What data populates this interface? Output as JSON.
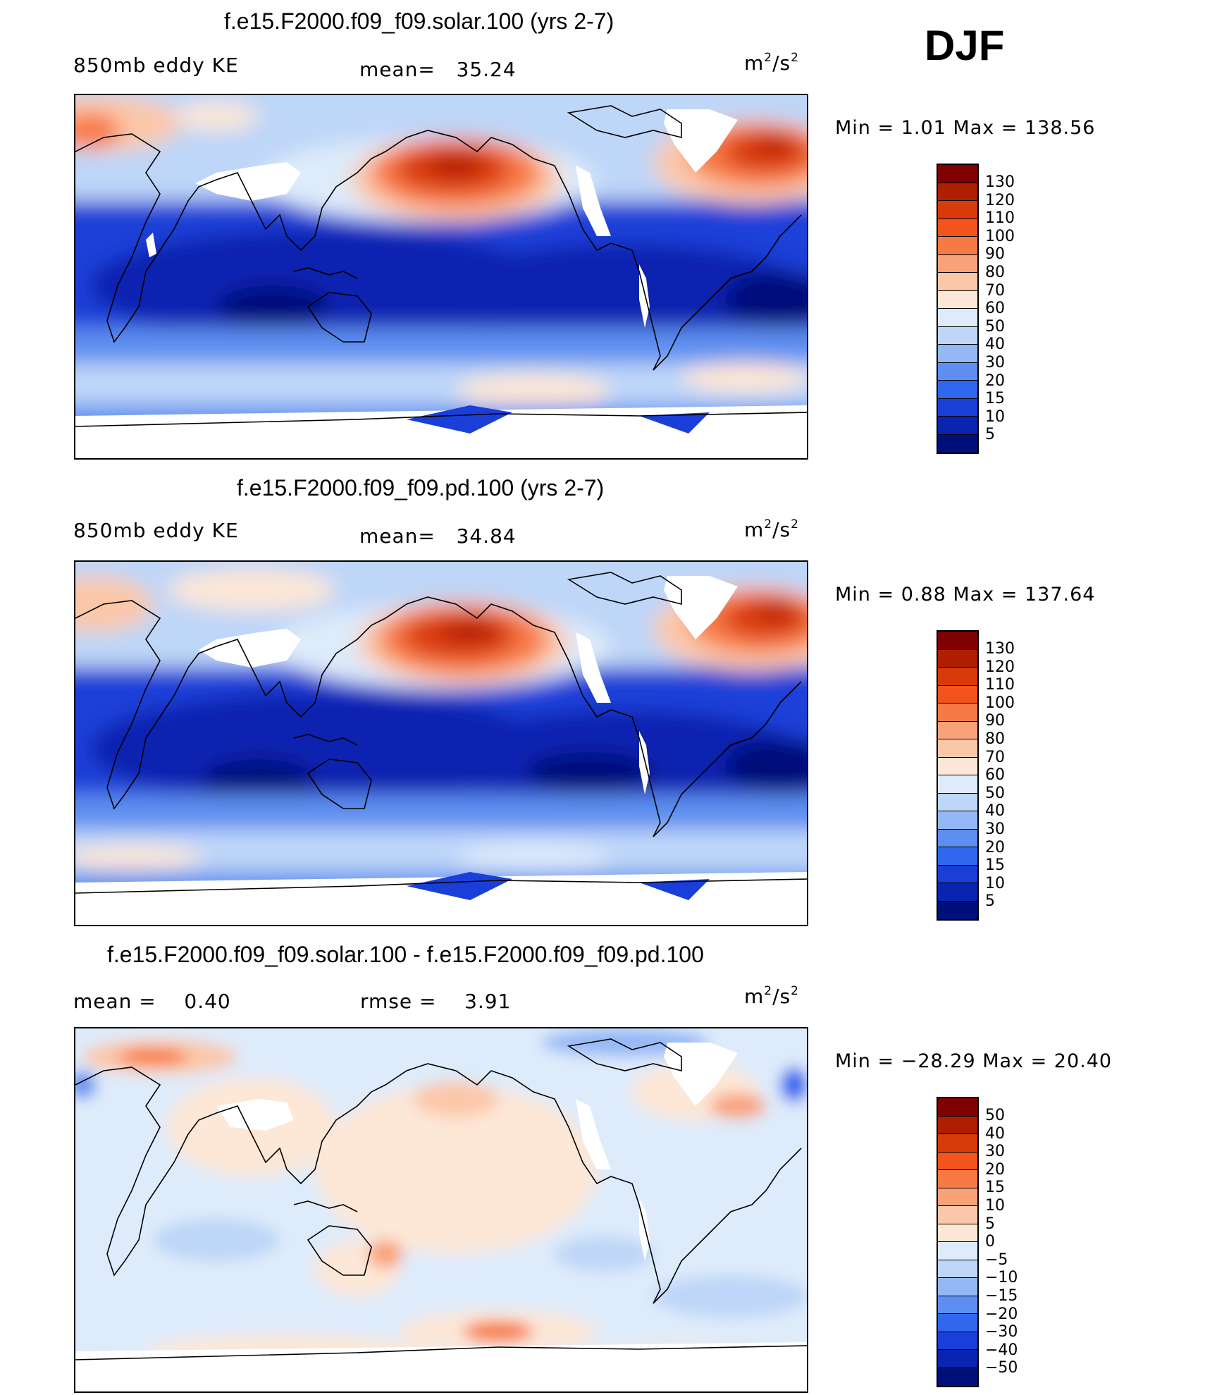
{
  "season": "DJF",
  "panels": [
    {
      "title": "f.e15.F2000.f09_f09.solar.100 (yrs 2-7)",
      "left_label": "850mb  eddy  KE",
      "mid_label": "mean=",
      "mid_value": "35.24",
      "units_base": "m",
      "units_exp": "2",
      "units_mid": "/s",
      "minmax": "Min  =     1.01  Max  =  138.56",
      "colorbar_labels": [
        "130",
        "120",
        "110",
        "100",
        "90",
        "80",
        "70",
        "60",
        "50",
        "40",
        "30",
        "20",
        "15",
        "10",
        "5"
      ]
    },
    {
      "title": "f.e15.F2000.f09_f09.pd.100 (yrs 2-7)",
      "left_label": "850mb  eddy  KE",
      "mid_label": "mean=",
      "mid_value": "34.84",
      "units_base": "m",
      "units_exp": "2",
      "units_mid": "/s",
      "minmax": "Min  =     0.88  Max  =  137.64",
      "colorbar_labels": [
        "130",
        "120",
        "110",
        "100",
        "90",
        "80",
        "70",
        "60",
        "50",
        "40",
        "30",
        "20",
        "15",
        "10",
        "5"
      ]
    },
    {
      "title": "f.e15.F2000.f09_f09.solar.100 - f.e15.F2000.f09_f09.pd.100",
      "left_label": "mean  =",
      "left_value": "0.40",
      "mid_label": "rmse  =",
      "mid_value": "3.91",
      "units_base": "m",
      "units_exp": "2",
      "units_mid": "/s",
      "minmax": "Min  = −28.29  Max  =    20.40",
      "colorbar_labels": [
        "50",
        "40",
        "30",
        "20",
        "15",
        "10",
        "5",
        "0",
        "−5",
        "−10",
        "−15",
        "−20",
        "−30",
        "−40",
        "−50"
      ]
    }
  ],
  "colors": {
    "abs_scale": [
      "#7f0000",
      "#b01e00",
      "#d93a0a",
      "#f2541c",
      "#f77a45",
      "#f9a27a",
      "#fbc7a9",
      "#fde7d6",
      "#deebfa",
      "#bed6f8",
      "#94b8f5",
      "#5d8ff0",
      "#2f67ee",
      "#1a3fd8",
      "#0824b0",
      "#00107a"
    ],
    "diff_scale": [
      "#7f0000",
      "#b01e00",
      "#d93a0a",
      "#f2541c",
      "#f77a45",
      "#f9a27a",
      "#fbc7a9",
      "#fde7d6",
      "#deebfa",
      "#bed6f8",
      "#94b8f5",
      "#5d8ff0",
      "#2f67ee",
      "#1a3fd8",
      "#0824b0",
      "#00107a"
    ],
    "land_missing": "#ffffff",
    "coast": "#000000"
  }
}
